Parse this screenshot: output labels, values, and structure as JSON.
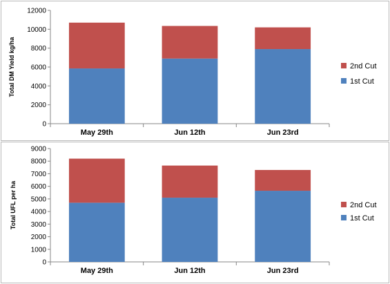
{
  "colors": {
    "first_cut": "#4f81bd",
    "second_cut": "#c0504d",
    "axis": "#868686"
  },
  "chart_data": [
    {
      "type": "bar",
      "stacked": true,
      "categories": [
        "May 29th",
        "Jun 12th",
        "Jun 23rd"
      ],
      "series": [
        {
          "name": "1st Cut",
          "values": [
            5850,
            6900,
            7900
          ]
        },
        {
          "name": "2nd Cut",
          "values": [
            4850,
            3450,
            2300
          ]
        }
      ],
      "ylabel": "Total DM Yield kg/ha",
      "ylim": [
        0,
        12000
      ],
      "yticks": [
        0,
        2000,
        4000,
        6000,
        8000,
        10000,
        12000
      ],
      "legend": "right",
      "grid": false
    },
    {
      "type": "bar",
      "stacked": true,
      "categories": [
        "May 29th",
        "Jun 12th",
        "Jun 23rd"
      ],
      "series": [
        {
          "name": "1st Cut",
          "values": [
            4700,
            5100,
            5650
          ]
        },
        {
          "name": "2nd Cut",
          "values": [
            3500,
            2550,
            1650
          ]
        }
      ],
      "ylabel": "Total UFL per ha",
      "ylim": [
        0,
        9000
      ],
      "yticks": [
        0,
        1000,
        2000,
        3000,
        4000,
        5000,
        6000,
        7000,
        8000,
        9000
      ],
      "legend": "right",
      "grid": false
    }
  ]
}
